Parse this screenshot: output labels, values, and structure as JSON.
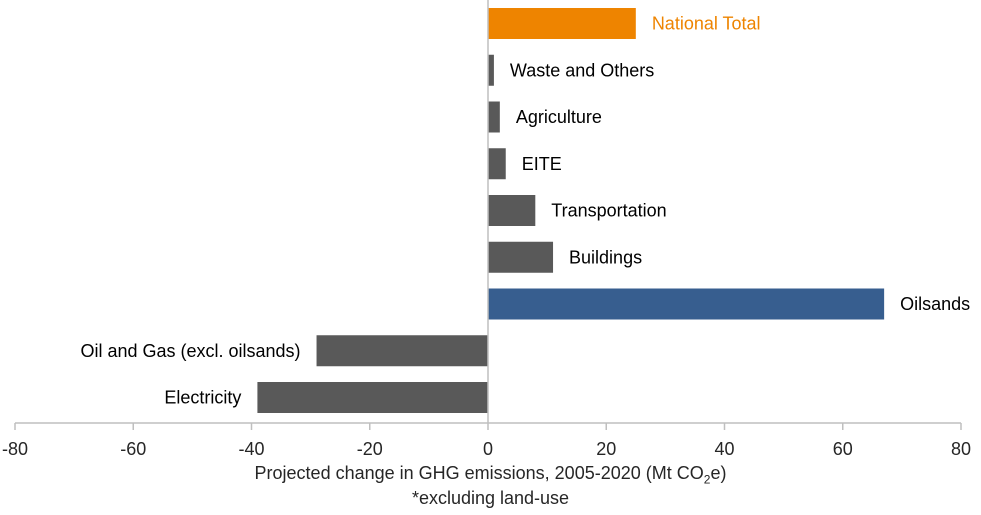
{
  "chart_data": {
    "type": "bar",
    "orientation": "horizontal",
    "title": "",
    "xlabel_main": "Projected change in GHG emissions, 2005-2020 (Mt CO",
    "xlabel_sub": "2",
    "xlabel_tail": "e)",
    "xlabel_note": "*excluding land-use",
    "xlim": [
      -80,
      80
    ],
    "xticks": [
      -80,
      -60,
      -40,
      -20,
      0,
      20,
      40,
      60,
      80
    ],
    "xtick_labels": [
      "-80",
      "-60",
      "-40",
      "-20",
      "0",
      "20",
      "40",
      "60",
      "80"
    ],
    "grid": false,
    "legend": "none",
    "categories": [
      "National Total",
      "Waste and Others",
      "Agriculture",
      "EITE",
      "Transportation",
      "Buildings",
      "Oilsands",
      "Oil and Gas (excl. oilsands)",
      "Electricity"
    ],
    "values": [
      25,
      1,
      2,
      3,
      8,
      11,
      67,
      -29,
      -39
    ],
    "colors": [
      "#EE8400",
      "#595959",
      "#595959",
      "#595959",
      "#595959",
      "#595959",
      "#375E8F",
      "#595959",
      "#595959"
    ],
    "label_colors": [
      "#EE8400",
      "#000000",
      "#000000",
      "#000000",
      "#000000",
      "#000000",
      "#000000",
      "#000000",
      "#000000"
    ]
  }
}
